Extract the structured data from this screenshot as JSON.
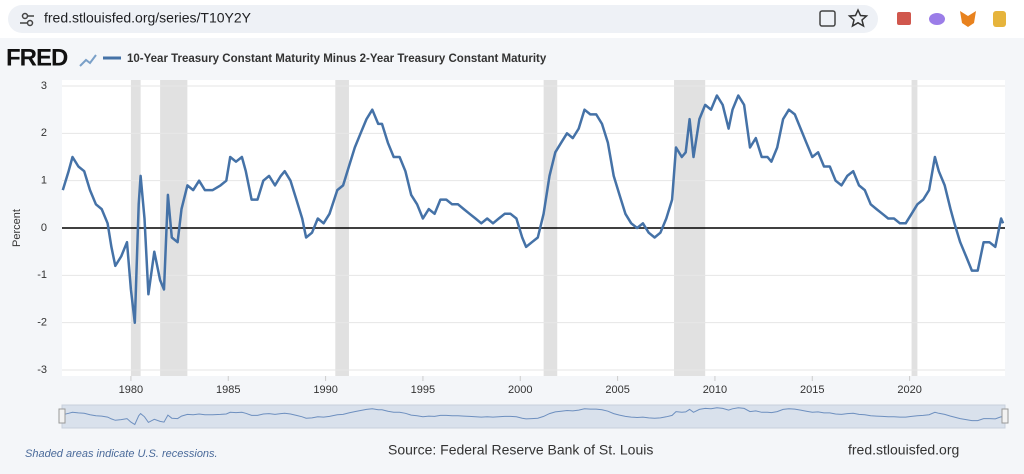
{
  "browser": {
    "url": "fred.stlouisfed.org/series/T10Y2Y"
  },
  "logo": "FRED",
  "chart_data": {
    "type": "line",
    "series": [
      {
        "name": "10-Year Treasury Constant Maturity Minus 2-Year Treasury Constant Maturity",
        "color": "#4572a7",
        "values": [
          0.8,
          1.2,
          1.5,
          1.3,
          1.2,
          0.8,
          0.5,
          0.4,
          0.1,
          -0.4,
          -0.8,
          -0.6,
          -0.3,
          -1.3,
          -2.0,
          0.5,
          1.1,
          0.2,
          -1.4,
          -0.5,
          -1.1,
          -1.3,
          0.7,
          -0.2,
          -0.3,
          0.4,
          0.9,
          0.8,
          1.0,
          0.8,
          0.8,
          0.9,
          1.0,
          1.5,
          1.4,
          1.5,
          1.2,
          0.6,
          0.6,
          1.0,
          1.1,
          0.9,
          1.1,
          1.2,
          1.0,
          0.6,
          0.2,
          -0.2,
          -0.1,
          0.2,
          0.1,
          0.3,
          0.8,
          0.9,
          1.3,
          1.7,
          2.0,
          2.3,
          2.5,
          2.2,
          2.2,
          1.8,
          1.5,
          1.5,
          1.2,
          0.7,
          0.5,
          0.2,
          0.4,
          0.3,
          0.6,
          0.6,
          0.5,
          0.5,
          0.4,
          0.3,
          0.2,
          0.1,
          0.2,
          0.1,
          0.2,
          0.3,
          0.3,
          0.2,
          -0.2,
          -0.4,
          -0.3,
          -0.2,
          0.3,
          1.1,
          1.6,
          1.8,
          2.0,
          1.9,
          2.1,
          2.5,
          2.4,
          2.4,
          2.2,
          1.8,
          1.1,
          0.7,
          0.3,
          0.1,
          0.0,
          0.1,
          -0.1,
          -0.2,
          -0.1,
          0.2,
          0.6,
          1.7,
          1.5,
          1.6,
          2.3,
          1.5,
          2.3,
          2.6,
          2.5,
          2.8,
          2.6,
          2.1,
          2.5,
          2.8,
          2.6,
          1.7,
          1.9,
          1.5,
          1.5,
          1.4,
          1.7,
          2.3,
          2.5,
          2.4,
          2.1,
          1.8,
          1.5,
          1.6,
          1.3,
          1.3,
          1.0,
          0.9,
          1.1,
          1.2,
          0.9,
          0.8,
          0.5,
          0.4,
          0.3,
          0.2,
          0.2,
          0.1,
          0.1,
          0.3,
          0.5,
          0.6,
          0.8,
          1.5,
          1.2,
          0.9,
          0.4,
          0.1,
          -0.3,
          -0.6,
          -0.9,
          -0.9,
          -0.3,
          -0.3,
          -0.4,
          0.2,
          0.1
        ]
      }
    ],
    "x": [
      1976.5,
      1976.8,
      1977.0,
      1977.3,
      1977.6,
      1977.9,
      1978.2,
      1978.5,
      1978.8,
      1979.0,
      1979.2,
      1979.5,
      1979.8,
      1980.0,
      1980.2,
      1980.4,
      1980.5,
      1980.7,
      1980.9,
      1981.2,
      1981.5,
      1981.7,
      1981.9,
      1982.1,
      1982.4,
      1982.6,
      1982.9,
      1983.2,
      1983.5,
      1983.8,
      1984.2,
      1984.6,
      1984.9,
      1985.1,
      1985.4,
      1985.7,
      1985.9,
      1986.2,
      1986.5,
      1986.8,
      1987.1,
      1987.4,
      1987.7,
      1987.9,
      1988.2,
      1988.5,
      1988.8,
      1989.0,
      1989.3,
      1989.6,
      1989.9,
      1990.2,
      1990.6,
      1990.9,
      1991.2,
      1991.5,
      1991.8,
      1992.1,
      1992.4,
      1992.7,
      1992.9,
      1993.2,
      1993.5,
      1993.8,
      1994.1,
      1994.4,
      1994.7,
      1995.0,
      1995.3,
      1995.6,
      1995.9,
      1996.2,
      1996.5,
      1996.8,
      1997.1,
      1997.4,
      1997.7,
      1998.0,
      1998.3,
      1998.6,
      1998.9,
      1999.2,
      1999.5,
      1999.8,
      2000.1,
      2000.3,
      2000.6,
      2000.9,
      2001.2,
      2001.5,
      2001.8,
      2002.1,
      2002.4,
      2002.7,
      2003.0,
      2003.3,
      2003.6,
      2003.9,
      2004.2,
      2004.5,
      2004.8,
      2005.1,
      2005.4,
      2005.7,
      2006.0,
      2006.3,
      2006.6,
      2006.9,
      2007.2,
      2007.5,
      2007.8,
      2008.0,
      2008.3,
      2008.5,
      2008.7,
      2008.9,
      2009.2,
      2009.5,
      2009.8,
      2010.1,
      2010.4,
      2010.7,
      2010.9,
      2011.2,
      2011.5,
      2011.8,
      2012.1,
      2012.4,
      2012.7,
      2012.9,
      2013.2,
      2013.5,
      2013.8,
      2014.1,
      2014.4,
      2014.7,
      2015.0,
      2015.3,
      2015.6,
      2015.9,
      2016.2,
      2016.5,
      2016.8,
      2017.1,
      2017.4,
      2017.7,
      2018.0,
      2018.3,
      2018.6,
      2018.9,
      2019.2,
      2019.5,
      2019.8,
      2020.1,
      2020.4,
      2020.7,
      2021.0,
      2021.3,
      2021.5,
      2021.8,
      2022.1,
      2022.3,
      2022.6,
      2022.9,
      2023.2,
      2023.5,
      2023.8,
      2024.1,
      2024.4,
      2024.7,
      2024.8
    ],
    "xlim": [
      1976.46,
      2024.9
    ],
    "xticks": [
      1980,
      1985,
      1990,
      1995,
      2000,
      2005,
      2010,
      2015,
      2020
    ],
    "ylim": [
      -3,
      3
    ],
    "yticks": [
      -3,
      -2,
      -1,
      0,
      1,
      2,
      3
    ],
    "ylabel": "Percent",
    "grid": true,
    "reference_line": 0,
    "recessions": [
      [
        1980.0,
        1980.5
      ],
      [
        1981.5,
        1982.9
      ],
      [
        1990.5,
        1991.2
      ],
      [
        2001.2,
        2001.9
      ],
      [
        2007.9,
        2009.5
      ],
      [
        2020.1,
        2020.4
      ]
    ]
  },
  "footer": {
    "note": "Shaded areas indicate U.S. recessions.",
    "source": "Source: Federal Reserve Bank of St. Louis",
    "site": "fred.stlouisfed.org"
  }
}
